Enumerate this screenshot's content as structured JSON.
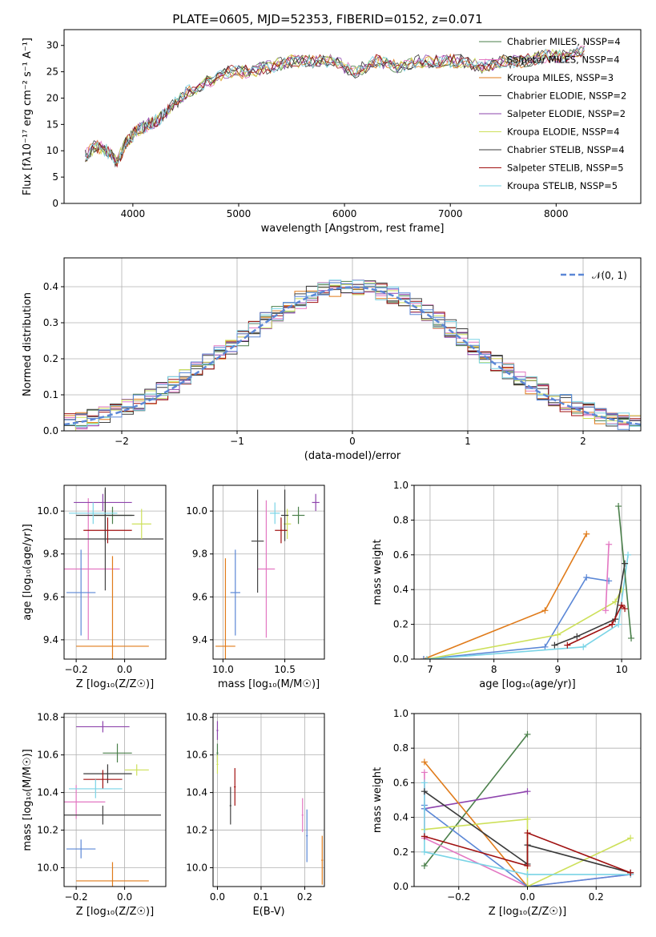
{
  "figure_title": "PLATE=0605, MJD=52353, FIBERID=0152, z=0.071",
  "colors": {
    "chabrier_miles": "#4a7f4a",
    "salpeter_miles": "#e377c2",
    "kroupa_miles": "#e07b1a",
    "chabrier_elodie": "#444444",
    "salpeter_elodie": "#8e44ad",
    "kroupa_elodie": "#cde05a",
    "chabrier_stelib": "#3a3a3a",
    "salpeter_stelib": "#a01010",
    "kroupa_stelib": "#7ad4e6",
    "blue": "#5b87d6",
    "normal": "#5b87d6"
  },
  "chart_data": [
    {
      "id": "spectrum",
      "type": "line",
      "title": "PLATE=0605, MJD=52353, FIBERID=0152, z=0.071",
      "xlabel": "wavelength [Angstrom, rest frame]",
      "ylabel": "Flux [fλ10⁻¹⁷ erg cm⁻² s⁻¹ A⁻¹]",
      "xlim": [
        3350,
        8800
      ],
      "ylim": [
        0,
        33
      ],
      "xticks": [
        "4000",
        "5000",
        "6000",
        "7000",
        "8000"
      ],
      "yticks": [
        "0",
        "5",
        "10",
        "15",
        "20",
        "25",
        "30"
      ],
      "x": [
        3550,
        3650,
        3750,
        3850,
        3950,
        4050,
        4150,
        4250,
        4350,
        4500,
        4700,
        4900,
        5100,
        5300,
        5500,
        5700,
        5900,
        6100,
        6300,
        6500,
        6700,
        6900,
        7100,
        7300,
        7500,
        7700,
        7900,
        8100,
        8300
      ],
      "y": [
        9,
        11,
        10,
        8,
        12,
        14,
        15,
        16,
        18,
        21,
        23,
        25,
        25,
        26,
        27,
        27,
        27,
        25,
        27,
        26,
        27,
        27,
        27,
        26,
        27,
        27,
        28,
        28,
        29
      ],
      "legend": [
        {
          "label": "Chabrier MILES, NSSP=4",
          "color_key": "chabrier_miles"
        },
        {
          "label": "Salpeter MILES, NSSP=4",
          "color_key": "salpeter_miles"
        },
        {
          "label": "Kroupa MILES, NSSP=3",
          "color_key": "kroupa_miles"
        },
        {
          "label": "Chabrier ELODIE, NSSP=2",
          "color_key": "chabrier_elodie"
        },
        {
          "label": "Salpeter ELODIE, NSSP=2",
          "color_key": "salpeter_elodie"
        },
        {
          "label": "Kroupa ELODIE, NSSP=4",
          "color_key": "kroupa_elodie"
        },
        {
          "label": "Chabrier STELIB, NSSP=4",
          "color_key": "chabrier_stelib"
        },
        {
          "label": "Salpeter STELIB, NSSP=5",
          "color_key": "salpeter_stelib"
        },
        {
          "label": "Kroupa STELIB, NSSP=5",
          "color_key": "kroupa_stelib"
        }
      ]
    },
    {
      "id": "residuals",
      "type": "line",
      "xlabel": "(data-model)/error",
      "ylabel": "Normed distribution",
      "xlim": [
        -2.5,
        2.5
      ],
      "ylim": [
        0,
        0.48
      ],
      "xticks": [
        "−2",
        "−1",
        "0",
        "1",
        "2"
      ],
      "yticks": [
        "0.0",
        "0.1",
        "0.2",
        "0.3",
        "0.4"
      ],
      "legend": "𝒩(0, 1)",
      "grid": true
    },
    {
      "id": "age_vs_Z",
      "type": "scatter",
      "xlabel": "Z [log₁₀(Z/Z☉)]",
      "ylabel": "age  [log₁₀(age/yr)]",
      "xlim": [
        -0.25,
        0.17
      ],
      "ylim": [
        9.31,
        10.12
      ],
      "xticks": [
        "−0.2",
        "0.0"
      ],
      "yticks": [
        "9.4",
        "9.6",
        "9.8",
        "10.0"
      ],
      "grid": true,
      "points": [
        {
          "color_key": "chabrier_miles",
          "x": -0.05,
          "y": 9.98,
          "xerr": 0.08,
          "yerr": 0.04
        },
        {
          "color_key": "salpeter_miles",
          "x": -0.15,
          "y": 9.73,
          "xerr": 0.13,
          "yerr": 0.33
        },
        {
          "color_key": "kroupa_miles",
          "x": -0.05,
          "y": 9.37,
          "xerr": 0.15,
          "yerr": 0.42
        },
        {
          "color_key": "chabrier_elodie",
          "x": -0.08,
          "y": 9.87,
          "xerr": 0.24,
          "yerr": 0.24
        },
        {
          "color_key": "salpeter_elodie",
          "x": -0.09,
          "y": 10.04,
          "xerr": 0.12,
          "yerr": 0.04
        },
        {
          "color_key": "kroupa_elodie",
          "x": 0.07,
          "y": 9.94,
          "xerr": 0.04,
          "yerr": 0.07
        },
        {
          "color_key": "chabrier_stelib",
          "x": -0.08,
          "y": 9.98,
          "xerr": 0.12,
          "yerr": 0.12
        },
        {
          "color_key": "salpeter_stelib",
          "x": -0.07,
          "y": 9.91,
          "xerr": 0.1,
          "yerr": 0.06
        },
        {
          "color_key": "kroupa_stelib",
          "x": -0.13,
          "y": 9.99,
          "xerr": 0.1,
          "yerr": 0.05
        },
        {
          "color_key": "blue",
          "x": -0.18,
          "y": 9.62,
          "xerr": 0.06,
          "yerr": 0.2
        }
      ]
    },
    {
      "id": "age_vs_mass",
      "type": "scatter",
      "xlabel": "mass [log₁₀(M/M☉)]",
      "xlim": [
        9.92,
        10.82
      ],
      "ylim": [
        9.31,
        10.12
      ],
      "xticks": [
        "10.0",
        "10.5"
      ],
      "yticks": [
        "9.4",
        "9.6",
        "9.8",
        "10.0"
      ],
      "grid": true,
      "points": [
        {
          "color_key": "chabrier_miles",
          "x": 10.61,
          "y": 9.98,
          "xerr": 0.05,
          "yerr": 0.04
        },
        {
          "color_key": "salpeter_miles",
          "x": 10.35,
          "y": 9.73,
          "xerr": 0.07,
          "yerr": 0.32
        },
        {
          "color_key": "kroupa_miles",
          "x": 10.02,
          "y": 9.37,
          "xerr": 0.08,
          "yerr": 0.41
        },
        {
          "color_key": "chabrier_elodie",
          "x": 10.28,
          "y": 9.86,
          "xerr": 0.05,
          "yerr": 0.24
        },
        {
          "color_key": "salpeter_elodie",
          "x": 10.75,
          "y": 10.04,
          "xerr": 0.03,
          "yerr": 0.04
        },
        {
          "color_key": "kroupa_elodie",
          "x": 10.52,
          "y": 9.94,
          "xerr": 0.03,
          "yerr": 0.07
        },
        {
          "color_key": "chabrier_stelib",
          "x": 10.5,
          "y": 9.98,
          "xerr": 0.03,
          "yerr": 0.12
        },
        {
          "color_key": "salpeter_stelib",
          "x": 10.47,
          "y": 9.91,
          "xerr": 0.05,
          "yerr": 0.06
        },
        {
          "color_key": "kroupa_stelib",
          "x": 10.42,
          "y": 9.99,
          "xerr": 0.04,
          "yerr": 0.05
        },
        {
          "color_key": "blue",
          "x": 10.1,
          "y": 9.62,
          "xerr": 0.04,
          "yerr": 0.2
        }
      ]
    },
    {
      "id": "mass_weight_vs_age",
      "type": "line",
      "xlabel": "age  [log₁₀(age/yr)]",
      "ylabel": "mass weight",
      "xlim": [
        6.75,
        10.3
      ],
      "ylim": [
        0,
        1
      ],
      "xticks": [
        "7",
        "8",
        "9",
        "10"
      ],
      "yticks": [
        "0.0",
        "0.2",
        "0.4",
        "0.6",
        "0.8",
        "1.0"
      ],
      "grid": true,
      "series": [
        {
          "color_key": "kroupa_miles",
          "x": [
            6.9,
            8.8,
            9.45
          ],
          "y": [
            0.0,
            0.28,
            0.72
          ]
        },
        {
          "color_key": "blue",
          "x": [
            6.9,
            8.8,
            9.45,
            9.8
          ],
          "y": [
            0.0,
            0.07,
            0.47,
            0.45
          ]
        },
        {
          "color_key": "kroupa_elodie",
          "x": [
            6.95,
            9.0,
            9.9,
            10.0
          ],
          "y": [
            0.0,
            0.14,
            0.33,
            0.4
          ]
        },
        {
          "color_key": "kroupa_stelib",
          "x": [
            6.95,
            9.4,
            9.95,
            10.1
          ],
          "y": [
            0.0,
            0.07,
            0.2,
            0.6
          ]
        },
        {
          "color_key": "salpeter_miles",
          "x": [
            9.75,
            9.8
          ],
          "y": [
            0.28,
            0.66
          ]
        },
        {
          "color_key": "chabrier_miles",
          "x": [
            9.95,
            10.15
          ],
          "y": [
            0.88,
            0.12
          ]
        },
        {
          "color_key": "chabrier_stelib",
          "x": [
            8.95,
            9.3,
            9.9,
            10.05
          ],
          "y": [
            0.08,
            0.13,
            0.23,
            0.55
          ]
        },
        {
          "color_key": "salpeter_stelib",
          "x": [
            9.15,
            9.85,
            10.0,
            10.05
          ],
          "y": [
            0.08,
            0.2,
            0.31,
            0.29
          ]
        }
      ]
    },
    {
      "id": "mass_vs_Z",
      "type": "scatter",
      "xlabel": "Z [log₁₀(Z/Z☉)]",
      "ylabel": "mass [log₁₀(M/M☉)]",
      "xlim": [
        -0.25,
        0.17
      ],
      "ylim": [
        9.9,
        10.82
      ],
      "xticks": [
        "−0.2",
        "0.0"
      ],
      "yticks": [
        "10.0",
        "10.2",
        "10.4",
        "10.6",
        "10.8"
      ],
      "grid": true,
      "points": [
        {
          "color_key": "chabrier_miles",
          "x": -0.03,
          "y": 10.61,
          "xerr": 0.06,
          "yerr": 0.05
        },
        {
          "color_key": "salpeter_miles",
          "x": -0.2,
          "y": 10.35,
          "xerr": 0.12,
          "yerr": 0.09
        },
        {
          "color_key": "kroupa_miles",
          "x": -0.05,
          "y": 9.93,
          "xerr": 0.15,
          "yerr": 0.1
        },
        {
          "color_key": "chabrier_elodie",
          "x": -0.09,
          "y": 10.28,
          "xerr": 0.24,
          "yerr": 0.05
        },
        {
          "color_key": "salpeter_elodie",
          "x": -0.09,
          "y": 10.75,
          "xerr": 0.11,
          "yerr": 0.03
        },
        {
          "color_key": "kroupa_elodie",
          "x": 0.05,
          "y": 10.52,
          "xerr": 0.05,
          "yerr": 0.03
        },
        {
          "color_key": "chabrier_stelib",
          "x": -0.07,
          "y": 10.5,
          "xerr": 0.1,
          "yerr": 0.05
        },
        {
          "color_key": "salpeter_stelib",
          "x": -0.09,
          "y": 10.47,
          "xerr": 0.08,
          "yerr": 0.05
        },
        {
          "color_key": "kroupa_stelib",
          "x": -0.12,
          "y": 10.42,
          "xerr": 0.11,
          "yerr": 0.05
        },
        {
          "color_key": "blue",
          "x": -0.18,
          "y": 10.1,
          "xerr": 0.06,
          "yerr": 0.05
        }
      ]
    },
    {
      "id": "mass_vs_ebv",
      "type": "scatter",
      "xlabel": "E(B-V)",
      "xlim": [
        -0.01,
        0.245
      ],
      "ylim": [
        9.9,
        10.82
      ],
      "xticks": [
        "0.0",
        "0.1",
        "0.2"
      ],
      "yticks": [
        "10.0",
        "10.2",
        "10.4",
        "10.6",
        "10.8"
      ],
      "grid": true,
      "points": [
        {
          "color_key": "chabrier_miles",
          "x": 0.0,
          "y": 10.61,
          "xerr": 0.002,
          "yerr": 0.05
        },
        {
          "color_key": "salpeter_miles",
          "x": 0.195,
          "y": 10.28,
          "xerr": 0.002,
          "yerr": 0.09
        },
        {
          "color_key": "kroupa_miles",
          "x": 0.24,
          "y": 10.04,
          "xerr": 0.002,
          "yerr": 0.13
        },
        {
          "color_key": "chabrier_elodie",
          "x": 0.03,
          "y": 10.33,
          "xerr": 0.002,
          "yerr": 0.1
        },
        {
          "color_key": "salpeter_elodie",
          "x": 0.0,
          "y": 10.73,
          "xerr": 0.002,
          "yerr": 0.05
        },
        {
          "color_key": "kroupa_elodie",
          "x": 0.0,
          "y": 10.55,
          "xerr": 0.002,
          "yerr": 0.05
        },
        {
          "color_key": "salpeter_stelib",
          "x": 0.04,
          "y": 10.43,
          "xerr": 0.002,
          "yerr": 0.1
        },
        {
          "color_key": "blue",
          "x": 0.205,
          "y": 10.17,
          "xerr": 0.002,
          "yerr": 0.14
        }
      ]
    },
    {
      "id": "mass_weight_vs_Z",
      "type": "line",
      "xlabel": "Z [log₁₀(Z/Z☉)]",
      "ylabel": "mass weight",
      "xlim": [
        -0.33,
        0.33
      ],
      "ylim": [
        0,
        1
      ],
      "xticks": [
        "−0.2",
        "0.0",
        "0.2"
      ],
      "yticks": [
        "0.0",
        "0.2",
        "0.4",
        "0.6",
        "0.8",
        "1.0"
      ],
      "grid": true,
      "series": [
        {
          "color_key": "chabrier_miles",
          "x": [
            -0.3,
            0.0
          ],
          "y": [
            0.12,
            0.88
          ]
        },
        {
          "color_key": "salpeter_elodie",
          "x": [
            -0.3,
            0.0
          ],
          "y": [
            0.45,
            0.55
          ]
        },
        {
          "color_key": "kroupa_miles",
          "x": [
            -0.3,
            0.0
          ],
          "y": [
            0.72,
            0.0
          ]
        },
        {
          "color_key": "salpeter_miles",
          "x": [
            -0.3,
            -0.3,
            0.0,
            0.3
          ],
          "y": [
            0.66,
            0.28,
            0.0,
            0.07
          ]
        },
        {
          "color_key": "blue",
          "x": [
            -0.3,
            -0.3,
            0.0,
            0.3
          ],
          "y": [
            0.47,
            0.45,
            0.0,
            0.07
          ]
        },
        {
          "color_key": "kroupa_elodie",
          "x": [
            -0.3,
            0.0,
            0.0,
            0.3
          ],
          "y": [
            0.33,
            0.39,
            0.0,
            0.28
          ]
        },
        {
          "color_key": "kroupa_stelib",
          "x": [
            -0.3,
            -0.3,
            0.0,
            0.3
          ],
          "y": [
            0.6,
            0.2,
            0.07,
            0.07
          ]
        },
        {
          "color_key": "chabrier_stelib",
          "x": [
            -0.3,
            0.0,
            0.0,
            0.3
          ],
          "y": [
            0.55,
            0.13,
            0.24,
            0.08
          ]
        },
        {
          "color_key": "salpeter_stelib",
          "x": [
            -0.3,
            0.0,
            0.0,
            0.3
          ],
          "y": [
            0.29,
            0.12,
            0.31,
            0.08
          ]
        }
      ]
    }
  ]
}
